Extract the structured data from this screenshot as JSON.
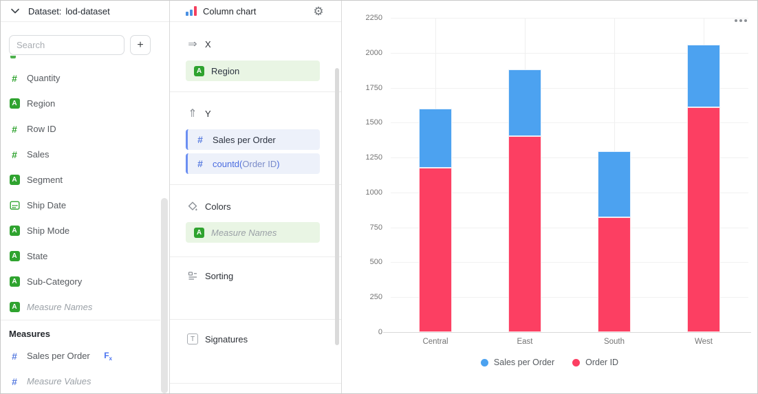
{
  "colors": {
    "green_accent": "#2fa32f",
    "blue_accent": "#5a7de0",
    "pill_green_bg": "#e9f5e4",
    "pill_blue_bg": "#edf1fa",
    "series_blue": "#4CA2F0",
    "series_red": "#FC3F62"
  },
  "left_panel": {
    "dataset_label": "Dataset:",
    "dataset_name": "lod-dataset",
    "search_placeholder": "Search",
    "add_button_label": "+",
    "fields": [
      {
        "label": "Quantity",
        "icon": "number-field-icon"
      },
      {
        "label": "Region",
        "icon": "string-field-icon"
      },
      {
        "label": "Row ID",
        "icon": "number-field-icon"
      },
      {
        "label": "Sales",
        "icon": "number-field-icon"
      },
      {
        "label": "Segment",
        "icon": "string-field-icon"
      },
      {
        "label": "Ship Date",
        "icon": "date-field-icon"
      },
      {
        "label": "Ship Mode",
        "icon": "string-field-icon"
      },
      {
        "label": "State",
        "icon": "string-field-icon"
      },
      {
        "label": "Sub-Category",
        "icon": "string-field-icon"
      },
      {
        "label": "Measure Names",
        "icon": "string-field-icon",
        "italic": true
      }
    ],
    "measures_header": "Measures",
    "measures": [
      {
        "label": "Sales per Order",
        "icon": "number-field-icon",
        "fx": "Fx"
      },
      {
        "label": "Measure Values",
        "icon": "number-field-icon",
        "italic": true
      }
    ]
  },
  "config_panel": {
    "chart_type_label": "Column chart",
    "sections": {
      "x": {
        "label": "X",
        "field": "Region"
      },
      "y": {
        "label": "Y",
        "field1": "Sales per Order",
        "field2": {
          "func": "countd(",
          "field": "Order ID",
          "close": ")"
        }
      },
      "colors": {
        "label": "Colors",
        "field": "Measure Names"
      },
      "sorting": {
        "label": "Sorting"
      },
      "signatures": {
        "label": "Signatures"
      }
    }
  },
  "chart_data": {
    "type": "bar",
    "stacked": true,
    "categories": [
      "Central",
      "East",
      "South",
      "West"
    ],
    "series": [
      {
        "name": "Sales per Order",
        "color": "#4CA2F0",
        "values": [
          426,
          479,
          474,
          449
        ]
      },
      {
        "name": "Order ID",
        "color": "#FC3F62",
        "values": [
          1175,
          1401,
          822,
          1611
        ]
      }
    ],
    "stack_bottom_to_top": [
      "Order ID",
      "Sales per Order"
    ],
    "totals": [
      1601,
      1880,
      1296,
      2060
    ],
    "y_ticks": [
      0,
      250,
      500,
      750,
      1000,
      1250,
      1500,
      1750,
      2000,
      2250
    ],
    "ylim": [
      0,
      2250
    ],
    "title": "",
    "xlabel": "",
    "ylabel": "",
    "grid": true,
    "legend_position": "bottom"
  }
}
